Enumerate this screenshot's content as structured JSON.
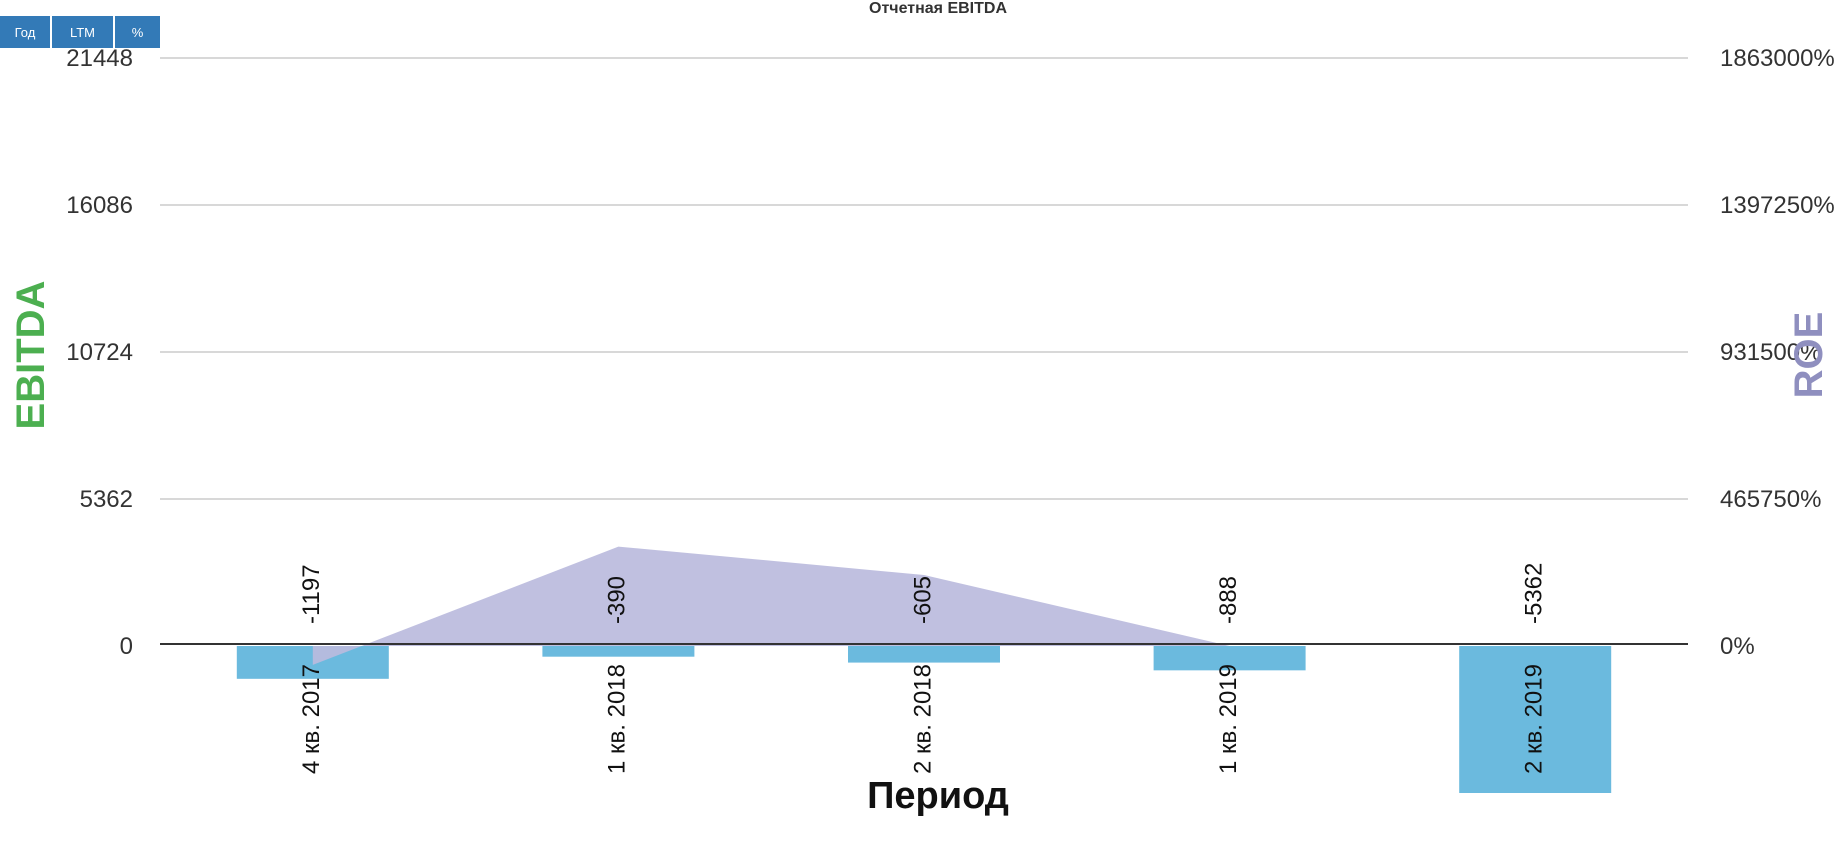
{
  "toolbar": {
    "buttons": [
      "Год",
      "LTM",
      "%"
    ]
  },
  "chart_data": {
    "type": "bar",
    "title": "Отчетная EBITDA",
    "xlabel": "Период",
    "ylabel": "EBITDA",
    "y2label": "ROE",
    "categories": [
      "4 кв. 2017",
      "1 кв. 2018",
      "2 кв. 2018",
      "1 кв. 2019",
      "2 кв. 2019"
    ],
    "series": [
      {
        "name": "EBITDA",
        "type": "bar",
        "axis": "left",
        "values": [
          -1197,
          -390,
          -605,
          -888,
          -5362
        ],
        "color": "#6bbade"
      },
      {
        "name": "ROE",
        "type": "area",
        "axis": "right",
        "values": [
          -60000,
          315000,
          225000,
          0,
          null
        ],
        "color": "#bbbbdd"
      }
    ],
    "ylim": [
      -5362,
      21448
    ],
    "y2lim": [
      -465750,
      1863000
    ],
    "yticks": [
      "0",
      "5362",
      "10724",
      "16086",
      "21448"
    ],
    "yticks_values": [
      0,
      5362,
      10724,
      16086,
      21448
    ],
    "y2ticks": [
      "0%",
      "465750%",
      "931500%",
      "1397250%",
      "1863000%"
    ],
    "y2ticks_values": [
      0,
      465750,
      931500,
      1397250,
      1863000
    ],
    "grid": true,
    "colors": {
      "ylabel": "#4caf50",
      "y2label": "#8f8fbf",
      "bar": "#6bbade",
      "area": "#bbbbdd",
      "grid": "#cccccc",
      "zero": "#333333"
    }
  }
}
